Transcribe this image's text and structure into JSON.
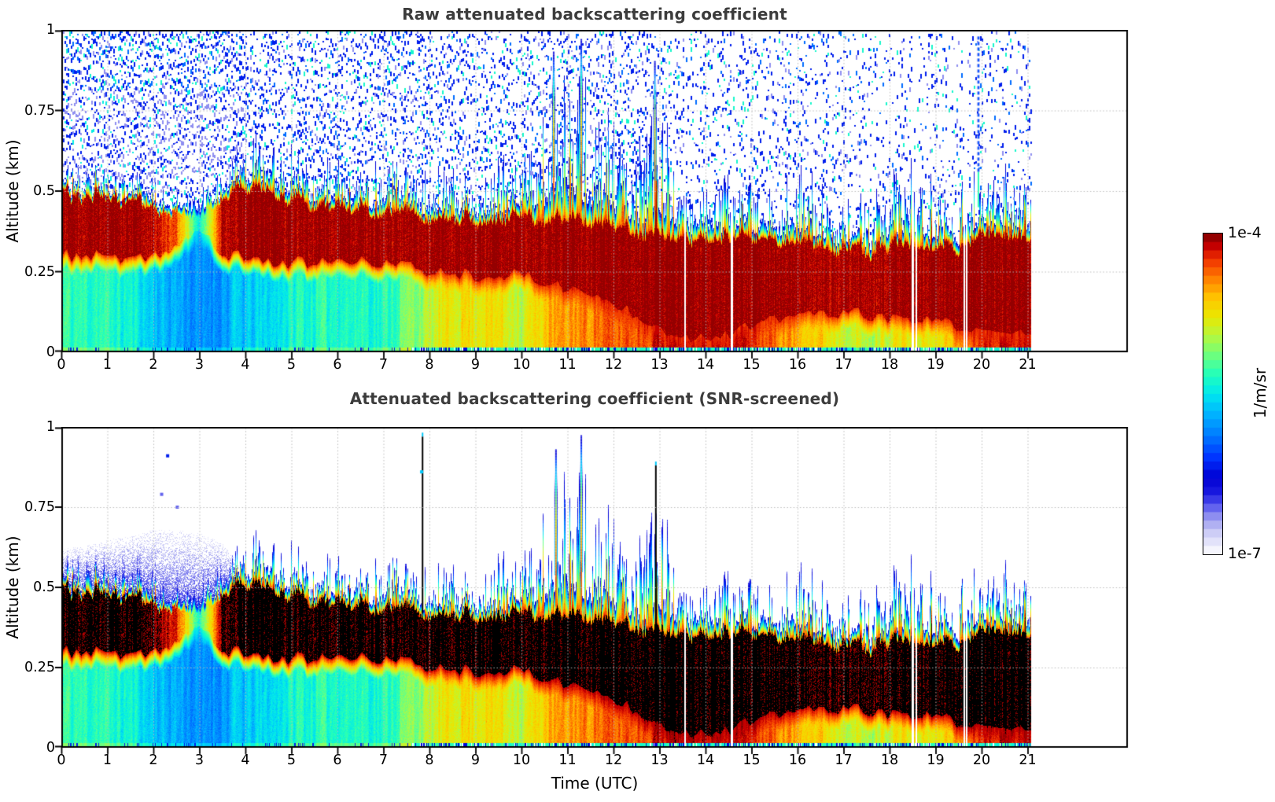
{
  "figure": {
    "background": "#ffffff",
    "title_color": "#3c3c3c",
    "tick_color": "#000000"
  },
  "xlabel": "Time (UTC)",
  "colorbar": {
    "top_label": "1e-4",
    "bottom_label": "1e-7",
    "unit_label": "1/m/sr",
    "levels": 38,
    "border_color": "#000000"
  },
  "panels": [
    {
      "title": "Raw attenuated backscattering coefficient",
      "ylabel": "Altitude (km)",
      "xtick_labels": [
        "0",
        "1",
        "2",
        "3",
        "4",
        "5",
        "6",
        "7",
        "8",
        "9",
        "10",
        "11",
        "12",
        "13",
        "14",
        "15",
        "16",
        "17",
        "18",
        "19",
        "20",
        "21"
      ],
      "ytick_labels": [
        "0",
        "0.25",
        "0.5",
        "0.75",
        "1"
      ]
    },
    {
      "title": "Attenuated backscattering coefficient (SNR-screened)",
      "ylabel": "Altitude (km)",
      "xtick_labels": [
        "0",
        "1",
        "2",
        "3",
        "4",
        "5",
        "6",
        "7",
        "8",
        "9",
        "10",
        "11",
        "12",
        "13",
        "14",
        "15",
        "16",
        "17",
        "18",
        "19",
        "20",
        "21"
      ],
      "ytick_labels": [
        "0",
        "0.25",
        "0.5",
        "0.75",
        "1"
      ]
    }
  ],
  "chart_data": [
    {
      "type": "heatmap",
      "title": "Raw attenuated backscattering coefficient",
      "xlabel": "Time (UTC)",
      "ylabel": "Altitude (km)",
      "x_range_hours": [
        0,
        23.2
      ],
      "x_ticks": [
        0,
        1,
        2,
        3,
        4,
        5,
        6,
        7,
        8,
        9,
        10,
        11,
        12,
        13,
        14,
        15,
        16,
        17,
        18,
        19,
        20,
        21
      ],
      "y_range_km": [
        0,
        1
      ],
      "y_ticks_km": [
        0,
        0.25,
        0.5,
        0.75,
        1
      ],
      "value_scale": {
        "type": "log10",
        "min": 1e-07,
        "max": 0.0001,
        "unit": "1/m/sr"
      },
      "grid": {
        "show": true,
        "style": "dotted",
        "color": "#bcbcbc"
      },
      "colormap_stops": [
        [
          0.0,
          "#ffffff"
        ],
        [
          0.03,
          "#e9e9fb"
        ],
        [
          0.07,
          "#cacaf5"
        ],
        [
          0.11,
          "#9b9bf0"
        ],
        [
          0.15,
          "#5b5bee"
        ],
        [
          0.19,
          "#1b1be0"
        ],
        [
          0.24,
          "#0000d2"
        ],
        [
          0.3,
          "#0032ff"
        ],
        [
          0.37,
          "#007aff"
        ],
        [
          0.44,
          "#00b6ff"
        ],
        [
          0.5,
          "#00e8ee"
        ],
        [
          0.56,
          "#22ffbb"
        ],
        [
          0.62,
          "#6cff7e"
        ],
        [
          0.68,
          "#b4f840"
        ],
        [
          0.74,
          "#eae800"
        ],
        [
          0.8,
          "#ffc400"
        ],
        [
          0.86,
          "#ff7e00"
        ],
        [
          0.92,
          "#f03000"
        ],
        [
          0.96,
          "#c40000"
        ],
        [
          1.0,
          "#7c0000"
        ]
      ],
      "envelope_hours": [
        0,
        0.5,
        1,
        1.5,
        2,
        2.5,
        3,
        3.5,
        4,
        4.5,
        5,
        5.5,
        6,
        6.5,
        7,
        7.5,
        8,
        8.5,
        9,
        9.5,
        10,
        10.5,
        11,
        11.5,
        12,
        12.5,
        13,
        13.5,
        14,
        14.5,
        15,
        15.5,
        16,
        16.5,
        17,
        17.5,
        18,
        18.5,
        19,
        19.5,
        20,
        20.5,
        21
      ],
      "aerosol_top_km": [
        0.6,
        0.58,
        0.6,
        0.58,
        0.55,
        0.52,
        0.5,
        0.6,
        0.7,
        0.72,
        0.68,
        0.65,
        0.62,
        0.6,
        0.63,
        0.6,
        0.58,
        0.6,
        0.58,
        0.62,
        0.68,
        0.82,
        0.92,
        0.86,
        0.76,
        0.66,
        0.85,
        0.62,
        0.6,
        0.58,
        0.55,
        0.55,
        0.62,
        0.55,
        0.52,
        0.5,
        0.56,
        0.62,
        0.55,
        0.52,
        0.62,
        0.6,
        0.56
      ],
      "cloud_band_top_km": [
        0.5,
        0.48,
        0.48,
        0.46,
        0.45,
        0.44,
        0.42,
        0.48,
        0.52,
        0.5,
        0.48,
        0.46,
        0.45,
        0.44,
        0.44,
        0.43,
        0.42,
        0.42,
        0.42,
        0.42,
        0.42,
        0.42,
        0.42,
        0.4,
        0.4,
        0.38,
        0.38,
        0.36,
        0.36,
        0.36,
        0.35,
        0.34,
        0.35,
        0.33,
        0.32,
        0.32,
        0.32,
        0.33,
        0.32,
        0.33,
        0.36,
        0.36,
        0.35
      ],
      "cloud_band_bottom_km": [
        0.3,
        0.3,
        0.3,
        0.28,
        0.3,
        0.33,
        0.38,
        0.3,
        0.3,
        0.28,
        0.28,
        0.28,
        0.28,
        0.28,
        0.28,
        0.27,
        0.25,
        0.25,
        0.24,
        0.24,
        0.24,
        0.22,
        0.2,
        0.18,
        0.15,
        0.12,
        0.08,
        0.05,
        0.05,
        0.06,
        0.08,
        0.1,
        0.12,
        0.12,
        0.12,
        0.12,
        0.1,
        0.1,
        0.1,
        0.08,
        0.06,
        0.06,
        0.06
      ],
      "cloud_band_peak_log10": [
        -4.05,
        -4.05,
        -4.04,
        -4.06,
        -4.1,
        -4.35,
        -5.5,
        -4.1,
        -4.04,
        -4.04,
        -4.05,
        -4.05,
        -4.05,
        -4.06,
        -4.06,
        -4.05,
        -4.05,
        -4.04,
        -4.04,
        -4.05,
        -4.05,
        -4.04,
        -4.03,
        -4.03,
        -4.03,
        -4.02,
        -4.01,
        -4.01,
        -4.01,
        -4.02,
        -4.03,
        -4.05,
        -4.05,
        -4.06,
        -4.07,
        -4.07,
        -4.06,
        -4.05,
        -4.06,
        -4.04,
        -4.02,
        -4.02,
        -4.03
      ],
      "surface_layer_log10": [
        -5.3,
        -5.3,
        -5.35,
        -5.45,
        -5.6,
        -5.7,
        -5.85,
        -5.75,
        -5.6,
        -5.55,
        -5.4,
        -5.35,
        -5.35,
        -5.35,
        -5.35,
        -5.15,
        -4.95,
        -4.75,
        -4.72,
        -4.72,
        -4.95,
        -4.6,
        -4.5,
        -4.42,
        -4.35,
        -4.28,
        -4.12,
        -4.08,
        -4.06,
        -4.1,
        -4.2,
        -4.4,
        -4.55,
        -4.68,
        -4.85,
        -4.95,
        -4.85,
        -4.72,
        -4.85,
        -4.5,
        -4.22,
        -4.12,
        -4.15
      ],
      "noise_speckle": {
        "present": true,
        "description": "dense blue/lavender noise dashes above the aerosol layer",
        "log10_range": [
          -6.7,
          -5.4
        ]
      },
      "data_gap_hours": [
        [
          13.54,
          13.58
        ],
        [
          14.55,
          14.6
        ],
        [
          18.48,
          18.53
        ],
        [
          18.56,
          18.6
        ],
        [
          19.6,
          19.64
        ],
        [
          19.66,
          19.7
        ]
      ],
      "tall_spikes": [
        {
          "hour": 10.7,
          "top_km": 0.93,
          "kind": "hot"
        },
        {
          "hour": 11.3,
          "top_km": 0.97,
          "kind": "hot"
        },
        {
          "hour": 12.9,
          "top_km": 0.9,
          "kind": "hot"
        },
        {
          "hour": 19.93,
          "top_km": 0.98,
          "kind": "dashed-blue"
        }
      ],
      "data_end_hour": 21.08
    },
    {
      "type": "heatmap",
      "title": "Attenuated backscattering coefficient (SNR-screened)",
      "xlabel": "Time (UTC)",
      "ylabel": "Altitude (km)",
      "x_range_hours": [
        0,
        23.2
      ],
      "x_ticks": [
        0,
        1,
        2,
        3,
        4,
        5,
        6,
        7,
        8,
        9,
        10,
        11,
        12,
        13,
        14,
        15,
        16,
        17,
        18,
        19,
        20,
        21
      ],
      "y_range_km": [
        0,
        1
      ],
      "y_ticks_km": [
        0,
        0.25,
        0.5,
        0.75,
        1
      ],
      "value_scale": {
        "type": "log10",
        "min": 1e-07,
        "max": 0.0001,
        "unit": "1/m/sr"
      },
      "saturated_black_above_log10": -4.0,
      "grid": {
        "show": true,
        "style": "dotted",
        "color": "#bcbcbc"
      },
      "colormap_stops": [
        [
          0.0,
          "#ffffff"
        ],
        [
          0.03,
          "#e9e9fb"
        ],
        [
          0.07,
          "#cacaf5"
        ],
        [
          0.11,
          "#9b9bf0"
        ],
        [
          0.15,
          "#5b5bee"
        ],
        [
          0.19,
          "#1b1be0"
        ],
        [
          0.24,
          "#0000d2"
        ],
        [
          0.3,
          "#0032ff"
        ],
        [
          0.37,
          "#007aff"
        ],
        [
          0.44,
          "#00b6ff"
        ],
        [
          0.5,
          "#00e8ee"
        ],
        [
          0.56,
          "#22ffbb"
        ],
        [
          0.62,
          "#6cff7e"
        ],
        [
          0.68,
          "#b4f840"
        ],
        [
          0.74,
          "#eae800"
        ],
        [
          0.8,
          "#ffc400"
        ],
        [
          0.86,
          "#ff7e00"
        ],
        [
          0.92,
          "#f03000"
        ],
        [
          0.96,
          "#c40000"
        ],
        [
          1.0,
          "#7c0000"
        ]
      ],
      "envelope_hours": [
        0,
        0.5,
        1,
        1.5,
        2,
        2.5,
        3,
        3.5,
        4,
        4.5,
        5,
        5.5,
        6,
        6.5,
        7,
        7.5,
        8,
        8.5,
        9,
        9.5,
        10,
        10.5,
        11,
        11.5,
        12,
        12.5,
        13,
        13.5,
        14,
        14.5,
        15,
        15.5,
        16,
        16.5,
        17,
        17.5,
        18,
        18.5,
        19,
        19.5,
        20,
        20.5,
        21
      ],
      "aerosol_top_km": [
        0.6,
        0.58,
        0.6,
        0.58,
        0.55,
        0.52,
        0.5,
        0.6,
        0.7,
        0.72,
        0.68,
        0.65,
        0.62,
        0.6,
        0.63,
        0.6,
        0.58,
        0.6,
        0.58,
        0.62,
        0.68,
        0.82,
        0.92,
        0.86,
        0.76,
        0.66,
        0.85,
        0.62,
        0.6,
        0.58,
        0.55,
        0.55,
        0.62,
        0.55,
        0.52,
        0.5,
        0.56,
        0.62,
        0.55,
        0.52,
        0.62,
        0.6,
        0.56
      ],
      "cloud_band_top_km": [
        0.5,
        0.48,
        0.48,
        0.46,
        0.45,
        0.44,
        0.42,
        0.48,
        0.52,
        0.5,
        0.48,
        0.46,
        0.45,
        0.44,
        0.44,
        0.43,
        0.42,
        0.42,
        0.42,
        0.42,
        0.42,
        0.42,
        0.42,
        0.4,
        0.4,
        0.38,
        0.38,
        0.36,
        0.36,
        0.36,
        0.35,
        0.34,
        0.35,
        0.33,
        0.32,
        0.32,
        0.32,
        0.33,
        0.32,
        0.33,
        0.36,
        0.36,
        0.35
      ],
      "cloud_band_bottom_km": [
        0.3,
        0.3,
        0.3,
        0.28,
        0.3,
        0.33,
        0.38,
        0.3,
        0.3,
        0.28,
        0.28,
        0.28,
        0.28,
        0.28,
        0.28,
        0.27,
        0.25,
        0.25,
        0.24,
        0.24,
        0.24,
        0.22,
        0.2,
        0.18,
        0.15,
        0.12,
        0.08,
        0.05,
        0.05,
        0.06,
        0.08,
        0.1,
        0.12,
        0.12,
        0.12,
        0.12,
        0.1,
        0.1,
        0.1,
        0.08,
        0.06,
        0.06,
        0.06
      ],
      "cloud_band_peak_log10": [
        -3.92,
        -3.92,
        -3.91,
        -3.93,
        -3.97,
        -4.22,
        -5.4,
        -3.97,
        -3.91,
        -3.91,
        -3.92,
        -3.92,
        -3.92,
        -3.93,
        -3.93,
        -3.92,
        -3.92,
        -3.91,
        -3.91,
        -3.92,
        -3.92,
        -3.91,
        -3.9,
        -3.9,
        -3.9,
        -3.89,
        -3.88,
        -3.88,
        -3.88,
        -3.89,
        -3.9,
        -3.92,
        -3.92,
        -3.93,
        -3.94,
        -3.94,
        -3.93,
        -3.92,
        -3.93,
        -3.91,
        -3.89,
        -3.89,
        -3.9
      ],
      "surface_layer_log10": [
        -5.3,
        -5.3,
        -5.35,
        -5.45,
        -5.6,
        -5.7,
        -5.85,
        -5.75,
        -5.6,
        -5.55,
        -5.4,
        -5.35,
        -5.35,
        -5.35,
        -5.35,
        -5.15,
        -4.95,
        -4.75,
        -4.72,
        -4.72,
        -4.95,
        -4.6,
        -4.5,
        -4.42,
        -4.35,
        -4.28,
        -4.12,
        -4.08,
        -4.06,
        -4.1,
        -4.2,
        -4.4,
        -4.55,
        -4.68,
        -4.85,
        -4.95,
        -4.85,
        -4.72,
        -4.85,
        -4.5,
        -4.22,
        -4.12,
        -4.15
      ],
      "noise_speckle": {
        "present": false
      },
      "residual_haze": {
        "hours": [
          0,
          0.5,
          1,
          1.5,
          2,
          2.5,
          3,
          3.5,
          3.85
        ],
        "top_km": [
          0.62,
          0.63,
          0.65,
          0.66,
          0.68,
          0.68,
          0.67,
          0.64,
          0.58
        ],
        "log10_range": [
          -6.9,
          -6.4
        ]
      },
      "isolated_dots": [
        {
          "hour": 2.31,
          "alt_km": 0.91,
          "log10": -6.2
        },
        {
          "hour": 2.18,
          "alt_km": 0.79,
          "log10": -6.6
        },
        {
          "hour": 2.52,
          "alt_km": 0.75,
          "log10": -6.6
        },
        {
          "hour": 7.83,
          "alt_km": 0.86,
          "log10": -5.6
        }
      ],
      "data_gap_hours": [
        [
          13.54,
          13.58
        ],
        [
          14.55,
          14.6
        ],
        [
          18.48,
          18.53
        ],
        [
          18.56,
          18.6
        ],
        [
          19.6,
          19.64
        ],
        [
          19.66,
          19.7
        ]
      ],
      "tall_spikes": [
        {
          "hour": 7.85,
          "top_km": 0.97,
          "kind": "black"
        },
        {
          "hour": 10.75,
          "top_km": 0.93,
          "kind": "hot"
        },
        {
          "hour": 11.3,
          "top_km": 0.97,
          "kind": "hot"
        },
        {
          "hour": 12.92,
          "top_km": 0.88,
          "kind": "black"
        }
      ],
      "data_end_hour": 21.08
    }
  ]
}
